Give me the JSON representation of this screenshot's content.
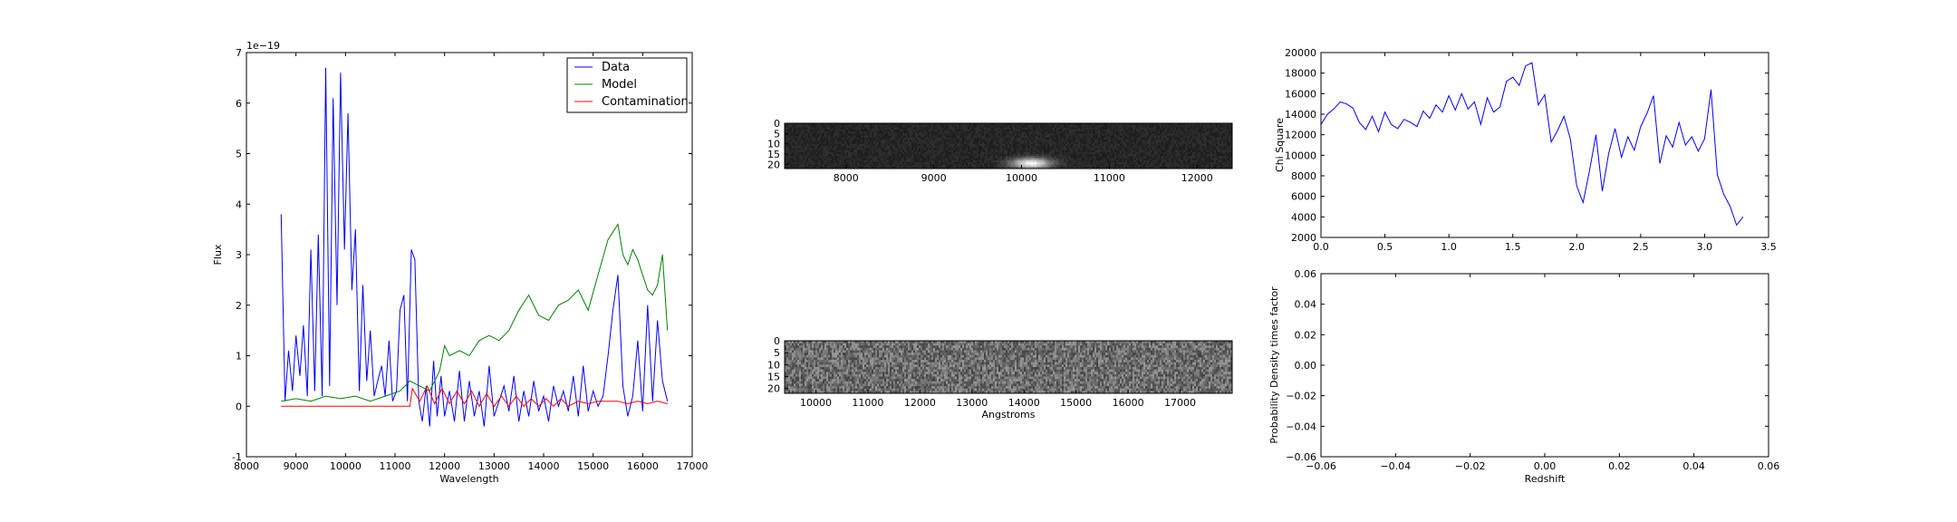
{
  "figure": {
    "background": "#ffffff"
  },
  "chart_data": [
    {
      "id": "spectrum",
      "type": "line",
      "title": "",
      "xlabel": "Wavelength",
      "ylabel": "Flux",
      "offset_text": "1e−19",
      "xlim": [
        8000,
        17000
      ],
      "ylim": [
        -1,
        7
      ],
      "xticks": [
        8000,
        9000,
        10000,
        11000,
        12000,
        13000,
        14000,
        15000,
        16000,
        17000
      ],
      "yticks": [
        -1,
        0,
        1,
        2,
        3,
        4,
        5,
        6,
        7
      ],
      "grid": false,
      "legend": "top-right",
      "series": [
        {
          "name": "Data",
          "color": "#0000ff",
          "x": [
            8700,
            8780,
            8850,
            8930,
            9000,
            9080,
            9150,
            9230,
            9300,
            9380,
            9450,
            9530,
            9600,
            9680,
            9750,
            9830,
            9900,
            9980,
            10050,
            10130,
            10200,
            10280,
            10350,
            10430,
            10500,
            10580,
            10650,
            10730,
            10800,
            10880,
            10950,
            11030,
            11100,
            11180,
            11250,
            11330,
            11400,
            11480,
            11550,
            11630,
            11700,
            11780,
            11850,
            11930,
            12000,
            12100,
            12200,
            12300,
            12400,
            12500,
            12600,
            12700,
            12800,
            12900,
            13000,
            13100,
            13200,
            13300,
            13400,
            13500,
            13600,
            13700,
            13800,
            13900,
            14000,
            14100,
            14200,
            14300,
            14400,
            14500,
            14600,
            14700,
            14800,
            14900,
            15000,
            15100,
            15200,
            15300,
            15400,
            15500,
            15600,
            15700,
            15800,
            15900,
            16000,
            16100,
            16200,
            16300,
            16400,
            16500
          ],
          "y": [
            3.8,
            0.1,
            1.1,
            0.3,
            1.4,
            0.6,
            1.6,
            0.2,
            3.1,
            0.3,
            3.4,
            0.2,
            6.7,
            0.4,
            6.1,
            2.0,
            6.6,
            3.1,
            5.8,
            2.3,
            3.5,
            0.3,
            2.4,
            0.5,
            1.5,
            0.2,
            0.5,
            0.8,
            0.2,
            1.3,
            0.1,
            0.3,
            1.9,
            2.2,
            0.1,
            3.1,
            2.9,
            0.1,
            -0.3,
            0.4,
            -0.4,
            0.9,
            -0.2,
            0.6,
            -0.2,
            0.3,
            -0.3,
            0.7,
            -0.3,
            0.5,
            -0.2,
            0.3,
            -0.4,
            0.8,
            -0.2,
            0.1,
            0.4,
            -0.1,
            0.6,
            -0.3,
            0.3,
            -0.2,
            0.5,
            -0.1,
            0.2,
            -0.3,
            0.4,
            0.0,
            0.3,
            -0.1,
            0.6,
            -0.2,
            0.8,
            -0.1,
            0.3,
            0.0,
            0.2,
            1.0,
            1.9,
            2.6,
            0.4,
            -0.2,
            0.2,
            1.3,
            -0.1,
            2.0,
            0.1,
            1.7,
            0.5,
            0.1
          ]
        },
        {
          "name": "Model",
          "color": "#008000",
          "x": [
            8700,
            9000,
            9300,
            9600,
            9900,
            10200,
            10500,
            10800,
            11100,
            11300,
            11500,
            11700,
            11900,
            12000,
            12100,
            12300,
            12500,
            12700,
            12900,
            13100,
            13300,
            13500,
            13700,
            13900,
            14100,
            14300,
            14500,
            14700,
            14900,
            15100,
            15300,
            15500,
            15600,
            15700,
            15800,
            15900,
            16000,
            16100,
            16200,
            16300,
            16400,
            16500
          ],
          "y": [
            0.1,
            0.15,
            0.1,
            0.2,
            0.15,
            0.2,
            0.1,
            0.2,
            0.3,
            0.5,
            0.4,
            0.3,
            0.7,
            1.2,
            1.0,
            1.1,
            1.0,
            1.3,
            1.4,
            1.3,
            1.5,
            1.9,
            2.2,
            1.8,
            1.7,
            2.0,
            2.1,
            2.3,
            1.9,
            2.6,
            3.3,
            3.6,
            3.0,
            2.8,
            3.1,
            2.9,
            2.6,
            2.3,
            2.2,
            2.4,
            3.0,
            1.5
          ]
        },
        {
          "name": "Contamination",
          "color": "#ff0000",
          "x": [
            8700,
            9500,
            10500,
            11300,
            11350,
            11500,
            11650,
            11800,
            11950,
            12100,
            12250,
            12400,
            12550,
            12700,
            12850,
            13000,
            13150,
            13300,
            13450,
            13600,
            13750,
            13900,
            14050,
            14200,
            14350,
            14500,
            14700,
            14900,
            15100,
            15300,
            15500,
            15700,
            15900,
            16100,
            16300,
            16500
          ],
          "y": [
            0.0,
            0.0,
            0.0,
            0.0,
            0.35,
            0.1,
            0.4,
            0.05,
            0.35,
            0.05,
            0.3,
            0.05,
            0.3,
            0.0,
            0.25,
            0.0,
            0.2,
            0.0,
            0.2,
            0.0,
            0.15,
            0.0,
            0.15,
            0.0,
            0.15,
            0.0,
            0.1,
            0.05,
            0.1,
            0.1,
            0.1,
            0.05,
            0.1,
            0.05,
            0.1,
            0.05
          ]
        }
      ]
    },
    {
      "id": "image-2d",
      "type": "heatmap",
      "xlim": [
        7300,
        12400
      ],
      "ylim": [
        22,
        0
      ],
      "xticks": [
        8000,
        9000,
        10000,
        11000,
        12000
      ],
      "yticks": [
        0,
        5,
        10,
        15,
        20
      ],
      "colormap": "gray",
      "hotspot": {
        "x": 10100,
        "y": 19
      }
    },
    {
      "id": "image-2d-contam",
      "type": "heatmap",
      "xlabel": "Angstroms",
      "xlim": [
        9400,
        18000
      ],
      "ylim": [
        22,
        0
      ],
      "xticks": [
        10000,
        11000,
        12000,
        13000,
        14000,
        15000,
        16000,
        17000
      ],
      "yticks": [
        0,
        5,
        10,
        15,
        20
      ],
      "colormap": "gray"
    },
    {
      "id": "chi-square",
      "type": "line",
      "xlabel": "",
      "ylabel": "Chi Square",
      "xlim": [
        0.0,
        3.5
      ],
      "ylim": [
        2000,
        20000
      ],
      "xticks": [
        0.0,
        0.5,
        1.0,
        1.5,
        2.0,
        2.5,
        3.0,
        3.5
      ],
      "yticks": [
        2000,
        4000,
        6000,
        8000,
        10000,
        12000,
        14000,
        16000,
        18000,
        20000
      ],
      "grid": false,
      "series": [
        {
          "color": "#0000ff",
          "x": [
            0.0,
            0.05,
            0.1,
            0.15,
            0.2,
            0.25,
            0.3,
            0.35,
            0.4,
            0.45,
            0.5,
            0.55,
            0.6,
            0.65,
            0.7,
            0.75,
            0.8,
            0.85,
            0.9,
            0.95,
            1.0,
            1.05,
            1.1,
            1.15,
            1.2,
            1.25,
            1.3,
            1.35,
            1.4,
            1.45,
            1.5,
            1.55,
            1.6,
            1.65,
            1.7,
            1.75,
            1.8,
            1.85,
            1.9,
            1.95,
            2.0,
            2.05,
            2.1,
            2.15,
            2.2,
            2.25,
            2.3,
            2.35,
            2.4,
            2.45,
            2.5,
            2.55,
            2.6,
            2.65,
            2.7,
            2.75,
            2.8,
            2.85,
            2.9,
            2.95,
            3.0,
            3.05,
            3.1,
            3.15,
            3.2,
            3.25,
            3.3
          ],
          "y": [
            13000,
            14000,
            14500,
            15200,
            15000,
            14600,
            13200,
            12500,
            13800,
            12300,
            14200,
            13000,
            12600,
            13500,
            13200,
            12800,
            14300,
            13600,
            14900,
            14200,
            15800,
            14400,
            16000,
            14500,
            15200,
            13000,
            15600,
            14200,
            14700,
            17200,
            17600,
            16800,
            18700,
            19000,
            14900,
            15900,
            11300,
            12400,
            13800,
            11600,
            7000,
            5400,
            8500,
            12000,
            6500,
            10200,
            12600,
            9800,
            11800,
            10500,
            12800,
            14100,
            15800,
            9200,
            11900,
            10800,
            13200,
            11000,
            11800,
            10400,
            11600,
            16400,
            8100,
            6200,
            5000,
            3200,
            4000
          ]
        }
      ]
    },
    {
      "id": "probability",
      "type": "line",
      "xlabel": "Redshift",
      "ylabel": "Probability Density times factor",
      "xlim": [
        -0.06,
        0.06
      ],
      "ylim": [
        -0.06,
        0.06
      ],
      "xticks": [
        -0.06,
        -0.04,
        -0.02,
        0.0,
        0.02,
        0.04,
        0.06
      ],
      "yticks": [
        -0.06,
        -0.04,
        -0.02,
        0.0,
        0.02,
        0.04,
        0.06
      ],
      "grid": false,
      "series": []
    }
  ]
}
